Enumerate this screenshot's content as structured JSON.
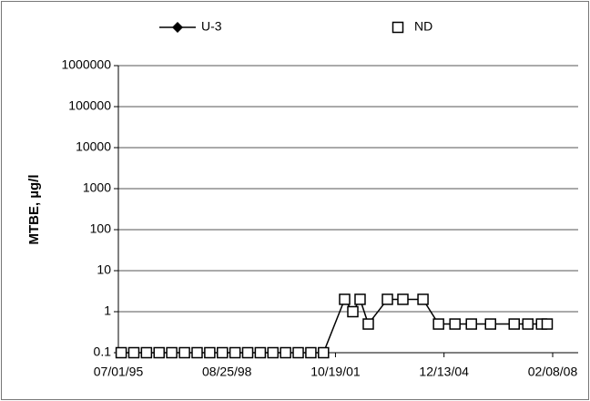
{
  "chart_data": {
    "type": "line",
    "y_label": "MTBE, µg/l",
    "log_y": true,
    "grid": true,
    "legend": "top",
    "x": [
      "07/31/95",
      "12/12/95",
      "04/24/96",
      "09/05/96",
      "01/17/97",
      "06/01/97",
      "10/13/97",
      "02/24/98",
      "07/08/98",
      "11/19/98",
      "04/02/99",
      "08/14/99",
      "12/26/99",
      "05/08/00",
      "09/19/00",
      "01/31/01",
      "06/14/01",
      "01/24/02",
      "04/21/02",
      "07/07/02",
      "10/02/02",
      "04/23/03",
      "10/04/03",
      "05/04/04",
      "10/16/04",
      "04/08/05",
      "09/29/05",
      "04/20/06",
      "12/27/06",
      "05/21/07",
      "10/13/07",
      "12/12/07"
    ],
    "series": [
      {
        "name": "U-3",
        "color": "#000000",
        "marker": "diamond",
        "values": [
          0.1,
          0.1,
          0.1,
          0.1,
          0.1,
          0.1,
          0.1,
          0.1,
          0.1,
          0.1,
          0.1,
          0.1,
          0.1,
          0.1,
          0.1,
          0.1,
          0.1,
          2,
          1,
          2,
          0.5,
          2,
          2,
          2,
          0.5,
          0.5,
          0.5,
          0.5,
          0.5,
          0.5,
          0.5,
          0.5
        ]
      },
      {
        "name": "ND",
        "color": "#000000",
        "marker": "square",
        "values": [
          0.1,
          0.1,
          0.1,
          0.1,
          0.1,
          0.1,
          0.1,
          0.1,
          0.1,
          0.1,
          0.1,
          0.1,
          0.1,
          0.1,
          0.1,
          0.1,
          0.1,
          2,
          1,
          2,
          0.5,
          2,
          2,
          2,
          0.5,
          0.5,
          0.5,
          0.5,
          0.5,
          0.5,
          0.5,
          0.5
        ]
      }
    ],
    "xlim": [
      "07/01/95",
      "02/08/08"
    ],
    "xticks": [
      "07/01/95",
      "08/25/98",
      "10/19/01",
      "12/13/04",
      "02/08/08"
    ],
    "ylim": [
      0.1,
      1000000
    ],
    "yticks": [
      0.1,
      1,
      10,
      100,
      1000,
      10000,
      100000,
      1000000
    ]
  }
}
